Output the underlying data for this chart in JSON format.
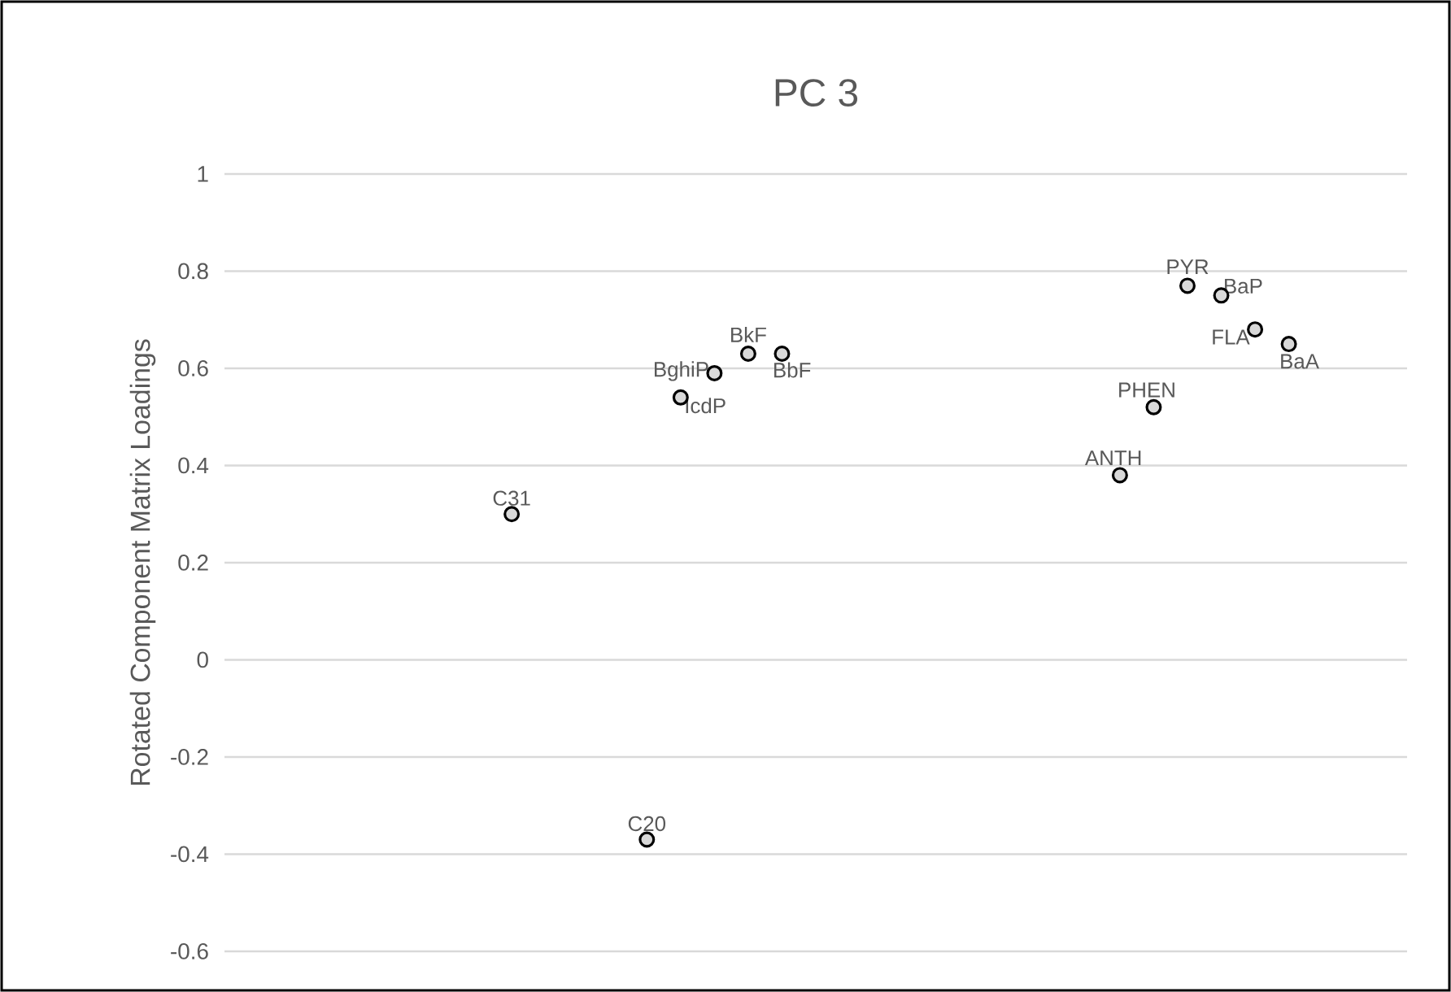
{
  "chart_data": {
    "type": "scatter",
    "title": "PC 3",
    "ylabel": "Rotated Component Matrix Loadings",
    "categories": [
      null,
      null,
      null,
      null,
      null,
      null,
      null,
      null,
      null,
      null,
      null,
      null,
      null,
      null,
      null,
      null,
      null,
      null,
      null,
      null,
      null,
      null,
      null,
      null,
      null,
      null,
      null,
      null,
      null,
      null,
      null,
      null,
      null,
      null,
      null
    ],
    "ylim": [
      -0.6,
      1
    ],
    "yticks": [
      -0.6,
      -0.4,
      -0.2,
      0,
      0.2,
      0.4,
      0.6,
      0.8,
      1
    ],
    "grid": "y",
    "tick_labels": "y",
    "marker": "circle",
    "series": [
      {
        "name": "C31",
        "color": "#d9d9d9",
        "values": [
          null,
          null,
          null,
          null,
          null,
          null,
          null,
          null,
          0.3,
          null,
          null,
          null,
          null,
          null,
          null,
          null,
          null,
          null,
          null,
          null,
          null,
          null,
          null,
          null,
          null,
          null,
          null,
          null,
          null,
          null,
          null,
          null,
          null,
          null,
          null
        ]
      },
      {
        "name": "C20",
        "color": "#d9d9d9",
        "values": [
          null,
          null,
          null,
          null,
          null,
          null,
          null,
          null,
          null,
          null,
          null,
          null,
          -0.37,
          null,
          null,
          null,
          null,
          null,
          null,
          null,
          null,
          null,
          null,
          null,
          null,
          null,
          null,
          null,
          null,
          null,
          null,
          null,
          null,
          null,
          null
        ]
      },
      {
        "name": "IcdP",
        "color": "#d9d9d9",
        "values": [
          null,
          null,
          null,
          null,
          null,
          null,
          null,
          null,
          null,
          null,
          null,
          null,
          null,
          0.54,
          null,
          null,
          null,
          null,
          null,
          null,
          null,
          null,
          null,
          null,
          null,
          null,
          null,
          null,
          null,
          null,
          null,
          null,
          null,
          null,
          null
        ]
      },
      {
        "name": "BghiP",
        "color": "#d9d9d9",
        "values": [
          null,
          null,
          null,
          null,
          null,
          null,
          null,
          null,
          null,
          null,
          null,
          null,
          null,
          null,
          0.59,
          null,
          null,
          null,
          null,
          null,
          null,
          null,
          null,
          null,
          null,
          null,
          null,
          null,
          null,
          null,
          null,
          null,
          null,
          null,
          null
        ]
      },
      {
        "name": "BkF",
        "color": "#d9d9d9",
        "values": [
          null,
          null,
          null,
          null,
          null,
          null,
          null,
          null,
          null,
          null,
          null,
          null,
          null,
          null,
          null,
          0.63,
          null,
          null,
          null,
          null,
          null,
          null,
          null,
          null,
          null,
          null,
          null,
          null,
          null,
          null,
          null,
          null,
          null,
          null,
          null
        ]
      },
      {
        "name": "BbF",
        "color": "#d9d9d9",
        "values": [
          null,
          null,
          null,
          null,
          null,
          null,
          null,
          null,
          null,
          null,
          null,
          null,
          null,
          null,
          null,
          null,
          0.63,
          null,
          null,
          null,
          null,
          null,
          null,
          null,
          null,
          null,
          null,
          null,
          null,
          null,
          null,
          null,
          null,
          null,
          null
        ]
      },
      {
        "name": "ANTH",
        "color": "#d9d9d9",
        "values": [
          null,
          null,
          null,
          null,
          null,
          null,
          null,
          null,
          null,
          null,
          null,
          null,
          null,
          null,
          null,
          null,
          null,
          null,
          null,
          null,
          null,
          null,
          null,
          null,
          null,
          null,
          0.38,
          null,
          null,
          null,
          null,
          null,
          null,
          null,
          null
        ]
      },
      {
        "name": "PHEN",
        "color": "#d9d9d9",
        "values": [
          null,
          null,
          null,
          null,
          null,
          null,
          null,
          null,
          null,
          null,
          null,
          null,
          null,
          null,
          null,
          null,
          null,
          null,
          null,
          null,
          null,
          null,
          null,
          null,
          null,
          null,
          null,
          0.52,
          null,
          null,
          null,
          null,
          null,
          null,
          null
        ]
      },
      {
        "name": "PYR",
        "color": "#d9d9d9",
        "values": [
          null,
          null,
          null,
          null,
          null,
          null,
          null,
          null,
          null,
          null,
          null,
          null,
          null,
          null,
          null,
          null,
          null,
          null,
          null,
          null,
          null,
          null,
          null,
          null,
          null,
          null,
          null,
          null,
          0.77,
          null,
          null,
          null,
          null,
          null,
          null
        ]
      },
      {
        "name": "BaP",
        "color": "#d9d9d9",
        "values": [
          null,
          null,
          null,
          null,
          null,
          null,
          null,
          null,
          null,
          null,
          null,
          null,
          null,
          null,
          null,
          null,
          null,
          null,
          null,
          null,
          null,
          null,
          null,
          null,
          null,
          null,
          null,
          null,
          null,
          0.75,
          null,
          null,
          null,
          null,
          null
        ]
      },
      {
        "name": "FLA",
        "color": "#d9d9d9",
        "values": [
          null,
          null,
          null,
          null,
          null,
          null,
          null,
          null,
          null,
          null,
          null,
          null,
          null,
          null,
          null,
          null,
          null,
          null,
          null,
          null,
          null,
          null,
          null,
          null,
          null,
          null,
          null,
          null,
          null,
          null,
          0.68,
          null,
          null,
          null,
          null
        ]
      },
      {
        "name": "BaA",
        "color": "#d9d9d9",
        "values": [
          null,
          null,
          null,
          null,
          null,
          null,
          null,
          null,
          null,
          null,
          null,
          null,
          null,
          null,
          null,
          null,
          null,
          null,
          null,
          null,
          null,
          null,
          null,
          null,
          null,
          null,
          null,
          null,
          null,
          null,
          null,
          0.65,
          null,
          null,
          null
        ]
      }
    ]
  }
}
